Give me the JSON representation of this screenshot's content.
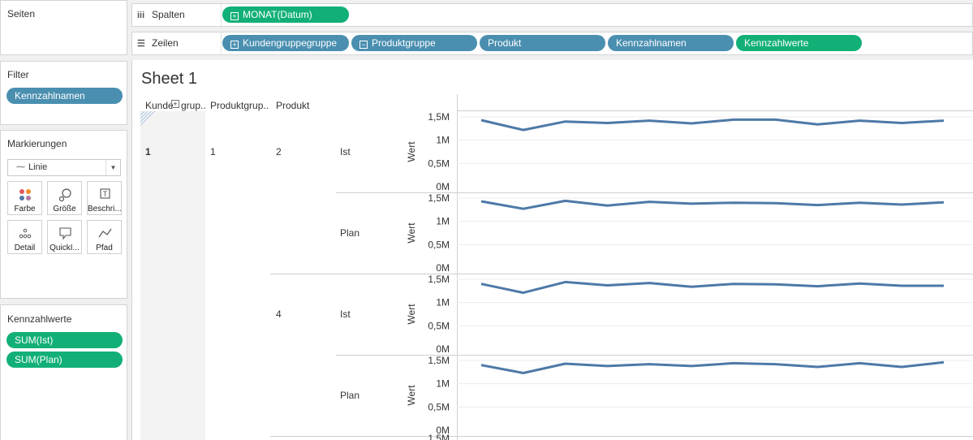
{
  "sidebar": {
    "seiten": {
      "title": "Seiten"
    },
    "filter": {
      "title": "Filter",
      "pills": [
        "Kennzahlnamen"
      ]
    },
    "markierungen": {
      "title": "Markierungen",
      "mark_type": "Linie",
      "buttons": [
        "Farbe",
        "Größe",
        "Beschri...",
        "Detail",
        "QuickI...",
        "Pfad"
      ]
    },
    "kennzahlwerte": {
      "title": "Kennzahlwerte",
      "pills": [
        "SUM(Ist)",
        "SUM(Plan)"
      ]
    }
  },
  "shelves": {
    "spalten": {
      "label": "Spalten",
      "pills": [
        "MONAT(Datum)"
      ]
    },
    "zeilen": {
      "label": "Zeilen",
      "pills": [
        "Kundengruppegruppe",
        "Produktgruppe",
        "Produkt",
        "Kennzahlnamen",
        "Kennzahlwerte"
      ]
    }
  },
  "sheet": {
    "title": "Sheet 1",
    "headers": [
      "Kunde",
      "grup..",
      "Produktgrup..",
      "Produkt"
    ],
    "row_labels": {
      "kunde": "1",
      "produktgruppe": "1",
      "produkte": [
        "2",
        "4"
      ],
      "measures": [
        "Ist",
        "Plan",
        "Ist",
        "Plan"
      ]
    },
    "axis_title": "Wert",
    "cut_tick": "1,5M"
  },
  "colors": {
    "line": "#4e79a7",
    "blue_pill": "#4a8fb0",
    "green_pill": "#12b076"
  },
  "chart_data": {
    "type": "line",
    "ylabel": "Wert",
    "ylim": [
      0,
      1500000
    ],
    "ytick_labels": [
      "0M",
      "0,5M",
      "1M",
      "1,5M"
    ],
    "x": [
      "1",
      "2",
      "3",
      "4",
      "5",
      "6",
      "7",
      "8",
      "9",
      "10",
      "11",
      "12"
    ],
    "panels": [
      {
        "produkt": "2",
        "kennzahl": "Ist",
        "values": [
          1430000,
          1220000,
          1400000,
          1370000,
          1420000,
          1360000,
          1440000,
          1440000,
          1340000,
          1420000,
          1370000,
          1420000
        ]
      },
      {
        "produkt": "2",
        "kennzahl": "Plan",
        "values": [
          1430000,
          1270000,
          1440000,
          1340000,
          1420000,
          1380000,
          1400000,
          1390000,
          1350000,
          1400000,
          1360000,
          1410000
        ]
      },
      {
        "produkt": "4",
        "kennzahl": "Ist",
        "values": [
          1400000,
          1210000,
          1440000,
          1370000,
          1420000,
          1340000,
          1400000,
          1390000,
          1350000,
          1410000,
          1360000,
          1360000
        ]
      },
      {
        "produkt": "4",
        "kennzahl": "Plan",
        "values": [
          1400000,
          1230000,
          1430000,
          1380000,
          1420000,
          1380000,
          1440000,
          1420000,
          1360000,
          1440000,
          1360000,
          1460000
        ]
      }
    ]
  }
}
